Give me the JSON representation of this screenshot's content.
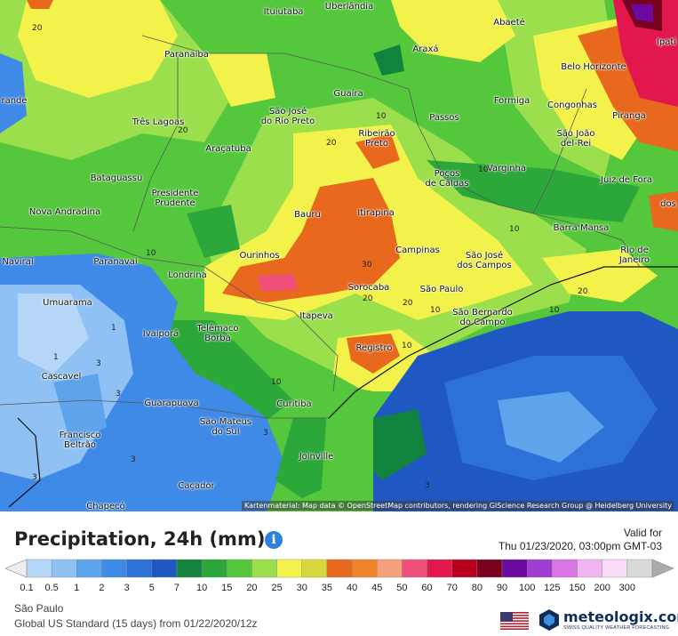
{
  "title": "Precipitation, 24h (mm)",
  "valid_for": {
    "label": "Valid for",
    "datetime": "Thu 01/23/2020, 03:00pm GMT-03"
  },
  "attribution": "Kartenmaterial: Map data © OpenStreetMap contributors, rendering GIScience Research Group @ Heidelberg University",
  "location": "São Paulo",
  "model": "Global US Standard (15 days) from 01/22/2020/12z",
  "brand": {
    "name": "meteologix.com",
    "tagline": "SWISS QUALITY WEATHER FORECASTING"
  },
  "icons": {
    "info": "info-icon",
    "flag": "us-flag-icon",
    "logo": "meteologix-logo"
  },
  "legend": {
    "labels": [
      "0.1",
      "0.5",
      "1",
      "2",
      "3",
      "5",
      "7",
      "10",
      "15",
      "20",
      "25",
      "30",
      "35",
      "40",
      "45",
      "50",
      "60",
      "70",
      "80",
      "90",
      "100",
      "125",
      "150",
      "200",
      "300"
    ],
    "colors": [
      "#b5d6f6",
      "#8fc1f4",
      "#5ea4ec",
      "#3f8ae6",
      "#2d70d8",
      "#1f58c2",
      "#12833e",
      "#2ca83b",
      "#55c73d",
      "#9be04c",
      "#f2f24a",
      "#d8d83a",
      "#e8681e",
      "#f0842a",
      "#f4a07a",
      "#ef4f7a",
      "#e2174e",
      "#b8001e",
      "#7a0020",
      "#6a0aa0",
      "#a23cd0",
      "#d874e4",
      "#f0b4f0",
      "#f8dcf8",
      "#d9d9d9"
    ]
  },
  "cities": [
    {
      "name": "Ituiutaba"
    },
    {
      "name": "Uberlândia"
    },
    {
      "name": "Abaeté"
    },
    {
      "name": "Paranaíba"
    },
    {
      "name": "Araxá"
    },
    {
      "name": "Ipati"
    },
    {
      "name": "Belo Horizonte"
    },
    {
      "name": "Guaíra"
    },
    {
      "name": "Formiga"
    },
    {
      "name": "Congonhas"
    },
    {
      "name": "Três Lagoas"
    },
    {
      "name": "São José\ndo Rio Preto"
    },
    {
      "name": "Passos"
    },
    {
      "name": "Ribeirão\nPreto"
    },
    {
      "name": "São João\ndel-Rei"
    },
    {
      "name": "Piranga"
    },
    {
      "name": "Araçatuba"
    },
    {
      "name": "Varginha"
    },
    {
      "name": "Bataguassu"
    },
    {
      "name": "Poços\nde Caldas"
    },
    {
      "name": "Juiz de Fora"
    },
    {
      "name": "Presidente\nPrudente"
    },
    {
      "name": "Nova Andradina"
    },
    {
      "name": "Bauru"
    },
    {
      "name": "Itirapina"
    },
    {
      "name": "Barra Mansa"
    },
    {
      "name": "Ourinhos"
    },
    {
      "name": "Campinas"
    },
    {
      "name": "São José\ndos Campos"
    },
    {
      "name": "Rio de Janeiro"
    },
    {
      "name": "Naviraí"
    },
    {
      "name": "Paranavaí"
    },
    {
      "name": "Londrina"
    },
    {
      "name": "Sorocaba"
    },
    {
      "name": "São Paulo"
    },
    {
      "name": "Umuarama"
    },
    {
      "name": "São Bernardo\ndo Campo"
    },
    {
      "name": "Itapeva"
    },
    {
      "name": "Telêmaco\nBorba"
    },
    {
      "name": "Ivaiporã"
    },
    {
      "name": "Registro"
    },
    {
      "name": "Cascavel"
    },
    {
      "name": "Guarapuava"
    },
    {
      "name": "Curitiba"
    },
    {
      "name": "São Mateus\ndo Sul"
    },
    {
      "name": "Francisco\nBeltrão"
    },
    {
      "name": "Joinville"
    },
    {
      "name": "Caçador"
    },
    {
      "name": "Chapecó"
    },
    {
      "name": "rande"
    },
    {
      "name": "dos"
    }
  ],
  "contour_labels": [
    "20",
    "10",
    "20",
    "20",
    "10",
    "10",
    "20",
    "30",
    "10",
    "20",
    "20",
    "10",
    "10",
    "1",
    "1",
    "3",
    "3",
    "3",
    "3",
    "3",
    "10",
    "3",
    "10"
  ]
}
